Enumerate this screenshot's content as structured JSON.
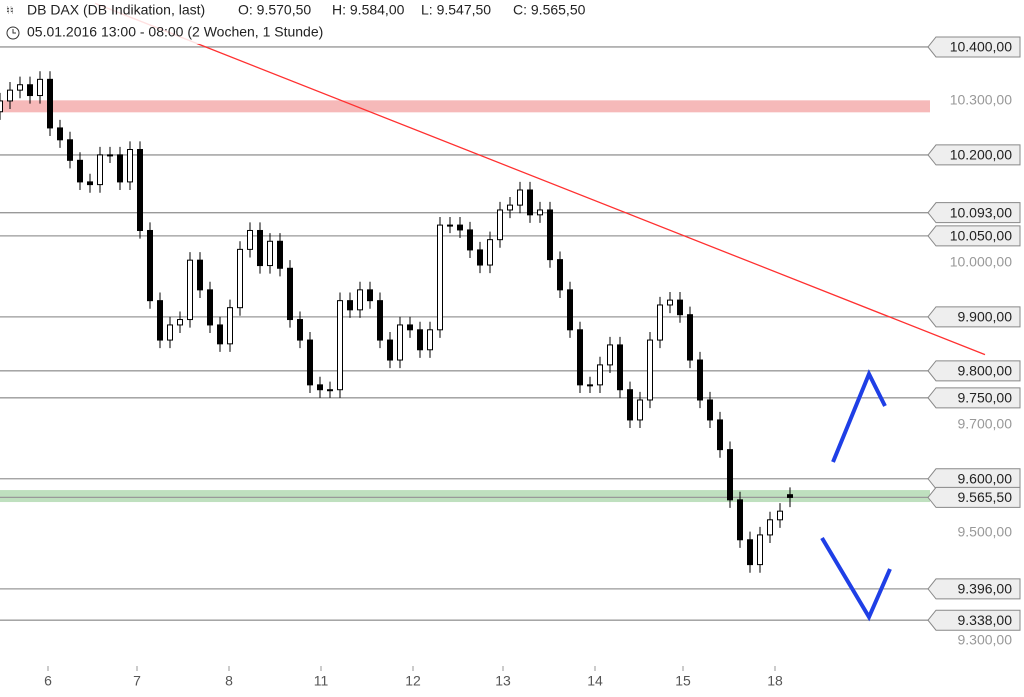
{
  "chart_data": {
    "type": "candlestick",
    "title": "DB DAX (DB Indikation, last)",
    "ohlc_labels": [
      "O: 9.570,50",
      "H: 9.584,00",
      "L: 9.547,50",
      "C: 9.565,50"
    ],
    "subtitle": "05.01.2016 13:00 - 08:00 (2 Wochen, 1 Stunde)",
    "x": [
      0,
      1,
      2,
      3,
      4,
      5,
      6,
      7,
      8,
      9,
      10,
      11,
      12,
      13,
      14,
      15,
      16,
      17,
      18,
      19,
      20,
      21,
      22,
      23,
      24,
      25,
      26,
      27,
      28,
      29,
      30,
      31,
      32,
      33,
      34,
      35,
      36,
      37,
      38,
      39,
      40,
      41,
      42,
      43,
      44,
      45,
      46,
      47,
      48,
      49,
      50,
      51,
      52,
      53,
      54,
      55,
      56,
      57,
      58,
      59,
      60,
      61,
      62,
      63,
      64,
      65,
      66,
      67,
      68,
      69,
      70,
      71,
      72,
      73,
      74,
      75,
      76,
      77,
      78,
      79
    ],
    "open": [
      10280,
      10300,
      10320,
      10330,
      10310,
      10340,
      10250,
      10228,
      10190,
      10150,
      10145,
      10200,
      10200,
      10150,
      10210,
      10060,
      9930,
      9857,
      9885,
      9895,
      10005,
      9950,
      9885,
      9850,
      9917,
      10025,
      10060,
      9995,
      10040,
      9990,
      9895,
      9857,
      9774,
      9765,
      9765,
      9930,
      9913,
      9950,
      9930,
      9857,
      9820,
      9885,
      9876,
      9839,
      9876,
      10070,
      10070,
      10061,
      10024,
      9996,
      10043,
      10098,
      10107,
      10135,
      10089,
      10098,
      10006,
      9950,
      9876,
      9774,
      9774,
      9811,
      9848,
      9765,
      9709,
      9746,
      9857,
      9922,
      9931,
      9904,
      9820,
      9746,
      9709,
      9654,
      9561,
      9487,
      9441,
      9496,
      9524,
      9570.5
    ],
    "high": [
      10315,
      10335,
      10345,
      10345,
      10355,
      10355,
      10265,
      10243,
      10205,
      10165,
      10215,
      10215,
      10215,
      10225,
      10225,
      10075,
      9945,
      9900,
      9910,
      10020,
      10020,
      9965,
      9900,
      9932,
      10040,
      10075,
      10075,
      10055,
      10055,
      10005,
      9910,
      9872,
      9789,
      9780,
      9945,
      9945,
      9965,
      9965,
      9945,
      9872,
      9900,
      9900,
      9891,
      9891,
      10085,
      10085,
      10085,
      10076,
      10039,
      10058,
      10113,
      10122,
      10150,
      10150,
      10113,
      10113,
      10021,
      9965,
      9891,
      9789,
      9826,
      9863,
      9863,
      9780,
      9761,
      9872,
      9937,
      9946,
      9946,
      9919,
      9835,
      9761,
      9724,
      9669,
      9576,
      9502,
      9511,
      9539,
      9555,
      9584
    ],
    "low": [
      10265,
      10285,
      10305,
      10295,
      10295,
      10235,
      10213,
      10175,
      10135,
      10130,
      10130,
      10185,
      10135,
      10135,
      10045,
      9915,
      9842,
      9842,
      9870,
      9880,
      9935,
      9870,
      9835,
      9835,
      9902,
      10010,
      9980,
      9980,
      9975,
      9880,
      9842,
      9759,
      9750,
      9750,
      9750,
      9898,
      9898,
      9915,
      9842,
      9805,
      9805,
      9861,
      9824,
      9824,
      9861,
      10055,
      10046,
      10009,
      9981,
      9981,
      10028,
      10083,
      10092,
      10074,
      10074,
      9991,
      9935,
      9861,
      9759,
      9759,
      9759,
      9796,
      9750,
      9694,
      9694,
      9731,
      9842,
      9907,
      9889,
      9805,
      9731,
      9694,
      9639,
      9546,
      9472,
      9426,
      9426,
      9481,
      9509,
      9547.5
    ],
    "close": [
      10300,
      10320,
      10330,
      10310,
      10340,
      10250,
      10228,
      10190,
      10150,
      10145,
      10200,
      10200,
      10150,
      10210,
      10060,
      9930,
      9857,
      9885,
      9895,
      10005,
      9950,
      9885,
      9850,
      9917,
      10025,
      10060,
      9995,
      10040,
      9990,
      9895,
      9857,
      9774,
      9765,
      9765,
      9930,
      9913,
      9950,
      9930,
      9857,
      9820,
      9885,
      9876,
      9839,
      9876,
      10070,
      10070,
      10061,
      10024,
      9996,
      10043,
      10098,
      10107,
      10135,
      10089,
      10098,
      10006,
      9950,
      9876,
      9774,
      9774,
      9811,
      9848,
      9765,
      9709,
      9746,
      9857,
      9922,
      9931,
      9904,
      9820,
      9746,
      9709,
      9654,
      9561,
      9487,
      9441,
      9496,
      9524,
      9540,
      9565.5
    ],
    "up_color": "#ffffff",
    "down_color": "#000000",
    "xlim": [
      0,
      102.4
    ],
    "xticks": [
      {
        "value": 4.8,
        "label": "6"
      },
      {
        "value": 13.7,
        "label": "7"
      },
      {
        "value": 22.9,
        "label": "8"
      },
      {
        "value": 32.1,
        "label": "11"
      },
      {
        "value": 41.3,
        "label": "12"
      },
      {
        "value": 50.3,
        "label": "13"
      },
      {
        "value": 59.5,
        "label": "14"
      },
      {
        "value": 68.3,
        "label": "15"
      },
      {
        "value": 77.5,
        "label": "18"
      }
    ],
    "ylim": [
      9255,
      10487
    ],
    "yticks": [
      {
        "value": 10300,
        "label": "10.300,00"
      },
      {
        "value": 10000,
        "label": "10.000,00"
      },
      {
        "value": 9700,
        "label": "9.700,00"
      },
      {
        "value": 9500,
        "label": "9.500,00"
      },
      {
        "value": 9300,
        "label": "9.300,00"
      }
    ],
    "levels": [
      {
        "value": 10400,
        "label": "10.400,00"
      },
      {
        "value": 10200,
        "label": "10.200,00"
      },
      {
        "value": 10093,
        "label": "10.093,00"
      },
      {
        "value": 10050,
        "label": "10.050,00"
      },
      {
        "value": 9900,
        "label": "9.900,00"
      },
      {
        "value": 9800,
        "label": "9.800,00"
      },
      {
        "value": 9750,
        "label": "9.750,00"
      },
      {
        "value": 9600,
        "label": "9.600,00"
      },
      {
        "value": 9565.5,
        "label": "9.565,50"
      },
      {
        "value": 9396,
        "label": "9.396,00"
      },
      {
        "value": 9338,
        "label": "9.338,00"
      }
    ],
    "bands": [
      {
        "value": 10290,
        "color": "#f6b9b9"
      },
      {
        "value": 9568,
        "color": "#bfe0bf"
      }
    ],
    "trendline": {
      "x": [
        9.5,
        98.5
      ],
      "values": [
        10481,
        9830
      ],
      "color": "#ff3030"
    }
  }
}
